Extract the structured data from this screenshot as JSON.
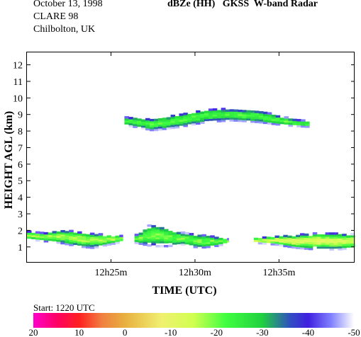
{
  "header": {
    "date": "October 13, 1998",
    "campaign": "CLARE 98",
    "location": "Chilbolton, UK",
    "product_title": "dBZe (HH)   GKSS  W-band Radar"
  },
  "start_label": "Start:  1220 UTC",
  "chart_data": {
    "type": "heatmap",
    "title": "dBZe (HH)   GKSS  W-band Radar",
    "xlabel": "TIME (UTC)",
    "ylabel": "HEIGHT AGL (km)",
    "x_unit": "minutes after 12h20m",
    "xlim": [
      0,
      19.5
    ],
    "ylim": [
      0.05,
      12.75
    ],
    "x_ticks": [
      {
        "value": 5,
        "label": "12h25m"
      },
      {
        "value": 10,
        "label": "12h30m"
      },
      {
        "value": 15,
        "label": "12h35m"
      }
    ],
    "y_ticks": [
      1,
      2,
      3,
      4,
      5,
      6,
      7,
      8,
      9,
      10,
      11,
      12
    ],
    "grid": false,
    "colorbar": {
      "unit": "dBZe",
      "min": -50,
      "max": 20,
      "labels": [
        "20",
        "10",
        "0",
        "-10",
        "-20",
        "-30",
        "-40",
        "-50"
      ],
      "stops": [
        {
          "dbz": 20,
          "color": "#ff00cc"
        },
        {
          "dbz": 15,
          "color": "#ff0066"
        },
        {
          "dbz": 10,
          "color": "#ff2020"
        },
        {
          "dbz": 5,
          "color": "#f08040"
        },
        {
          "dbz": 0,
          "color": "#e8b040"
        },
        {
          "dbz": -8,
          "color": "#f0f070"
        },
        {
          "dbz": -15,
          "color": "#d0ff50"
        },
        {
          "dbz": -22,
          "color": "#40ff40"
        },
        {
          "dbz": -30,
          "color": "#20d040"
        },
        {
          "dbz": -36,
          "color": "#3050c0"
        },
        {
          "dbz": -40,
          "color": "#4020e0"
        },
        {
          "dbz": -45,
          "color": "#8080ff"
        },
        {
          "dbz": -50,
          "color": "#ffffff"
        }
      ]
    },
    "echoes": [
      {
        "name": "upper-cloud-layer",
        "x_start": 5.8,
        "x_end": 16.8,
        "base_km": [
          8.3,
          8.0,
          8.2,
          8.5,
          8.6,
          8.5,
          8.3,
          8.2
        ],
        "top_km": [
          8.8,
          8.7,
          9.0,
          9.3,
          9.3,
          9.2,
          8.8,
          8.5
        ],
        "peak_dbz": -22
      },
      {
        "name": "low-cloud-west",
        "x_start": 0,
        "x_end": 5.7,
        "base_km": [
          1.4,
          1.3,
          1.2,
          1.0,
          0.9,
          1.1,
          1.3
        ],
        "top_km": [
          1.9,
          1.8,
          2.0,
          1.9,
          1.8,
          1.7,
          1.6
        ],
        "peak_dbz": -17
      },
      {
        "name": "low-cloud-middle",
        "x_start": 6.4,
        "x_end": 12.0,
        "base_km": [
          1.2,
          1.0,
          1.0,
          1.1,
          0.9,
          1.0,
          1.2
        ],
        "top_km": [
          1.7,
          2.4,
          2.1,
          1.8,
          1.7,
          1.6,
          1.4
        ],
        "peak_dbz": -20
      },
      {
        "name": "low-cloud-east",
        "x_start": 13.5,
        "x_end": 19.5,
        "base_km": [
          1.2,
          1.1,
          0.9,
          0.8,
          0.8,
          0.9
        ],
        "top_km": [
          1.5,
          1.6,
          1.7,
          1.8,
          1.8,
          1.7
        ],
        "peak_dbz": -12
      }
    ]
  }
}
